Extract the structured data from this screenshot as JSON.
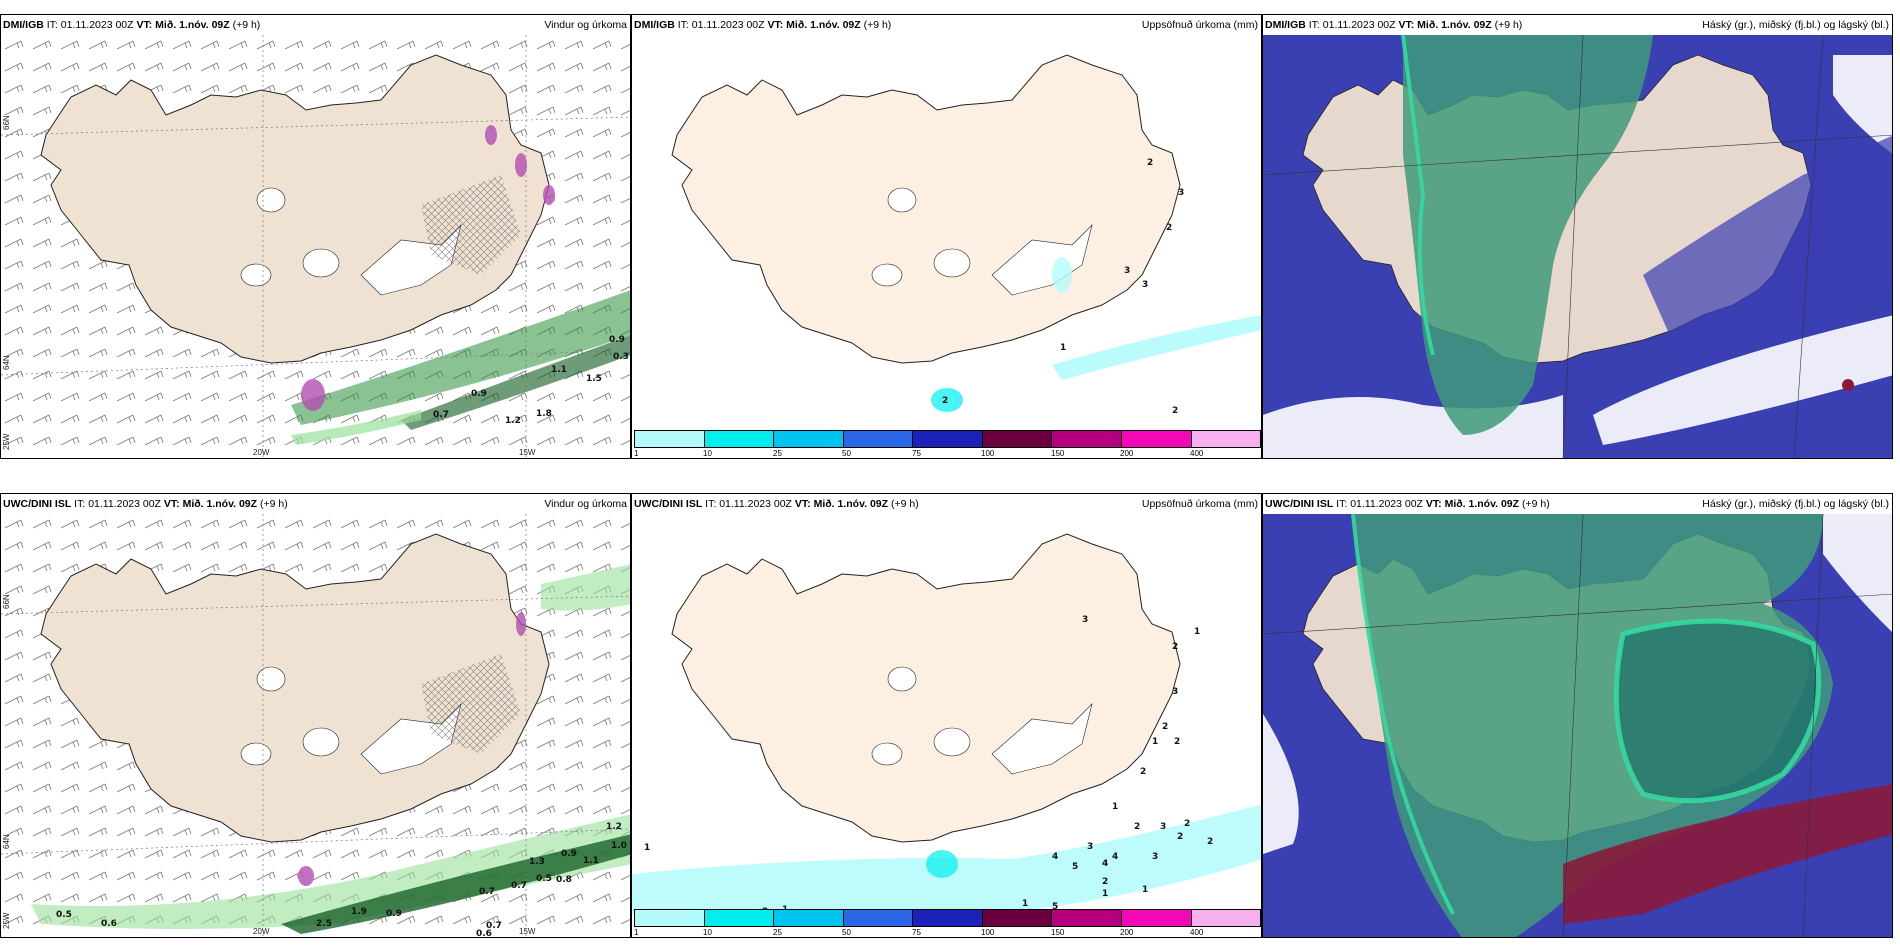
{
  "panels": [
    {
      "model": "DMI/IGB",
      "it_label": "IT:",
      "it": "01.11.2023 00Z",
      "vt_label": "VT:",
      "vt": "Mið. 1.nóv. 09Z",
      "lead": "(+9 h)",
      "title": "Vindur og úrkoma"
    },
    {
      "model": "DMI/IGB",
      "it_label": "IT:",
      "it": "01.11.2023 00Z",
      "vt_label": "VT:",
      "vt": "Mið. 1.nóv. 09Z",
      "lead": "(+9 h)",
      "title": "Uppsöfnuð úrkoma (mm)"
    },
    {
      "model": "DMI/IGB",
      "it_label": "IT:",
      "it": "01.11.2023 00Z",
      "vt_label": "VT:",
      "vt": "Mið. 1.nóv. 09Z",
      "lead": "(+9 h)",
      "title": "Háský (gr.), miðský (fj.bl.) og lágský (bl.)"
    },
    {
      "model": "UWC/DINI ISL",
      "it_label": "IT:",
      "it": "01.11.2023 00Z",
      "vt_label": "VT:",
      "vt": "Mið. 1.nóv. 09Z",
      "lead": "(+9 h)",
      "title": "Vindur og úrkoma"
    },
    {
      "model": "UWC/DINI ISL",
      "it_label": "IT:",
      "it": "01.11.2023 00Z",
      "vt_label": "VT:",
      "vt": "Mið. 1.nóv. 09Z",
      "lead": "(+9 h)",
      "title": "Uppsöfnuð úrkoma (mm)"
    },
    {
      "model": "UWC/DINI ISL",
      "it_label": "IT:",
      "it": "01.11.2023 00Z",
      "vt_label": "VT:",
      "vt": "Mið. 1.nóv. 09Z",
      "lead": "(+9 h)",
      "title": "Háský (gr.), miðský (fj.bl.) og lágský (bl.)"
    }
  ],
  "axes": {
    "lon_ticks": [
      "20W",
      "15W"
    ],
    "lat_ticks": [
      "66N",
      "64N"
    ],
    "lat_low": "25W"
  },
  "precip_colorbar": {
    "labels": [
      "1",
      "10",
      "25",
      "50",
      "75",
      "100",
      "150",
      "200",
      "400"
    ],
    "colors": [
      "#b3fbfb",
      "#00eeee",
      "#00c4f0",
      "#2a66e6",
      "#1a22b8",
      "#6a003f",
      "#b4007e",
      "#f208b8",
      "#f6b0f0"
    ]
  },
  "wind_labels": {
    "top": [
      "0.9",
      "1.1",
      "1.5",
      "0.7",
      "1.2",
      "1.8",
      "0.3",
      "0.9"
    ],
    "bottom": [
      "0.5",
      "0.6",
      "2.5",
      "1.9",
      "0.9",
      "0.7",
      "0.7",
      "0.6",
      "0.7",
      "0.5",
      "0.8",
      "1.1",
      "0.9",
      "1.0",
      "1.2",
      "1.3"
    ]
  },
  "accum_labels": {
    "top": [
      "2",
      "3",
      "2",
      "3",
      "3",
      "2",
      "1",
      "2"
    ],
    "bottom": [
      "1",
      "3",
      "2",
      "1",
      "3",
      "2",
      "1",
      "2",
      "2",
      "1",
      "2",
      "3",
      "4",
      "5",
      "4",
      "4",
      "3",
      "2",
      "2",
      "3",
      "2",
      "1",
      "5",
      "1",
      "2",
      "2",
      "1",
      "1"
    ]
  },
  "colors": {
    "land": "#f0e2d2",
    "land_accum": "#fdf0e2",
    "glacier": "#ffffff",
    "precip_green": "#2a8f3a",
    "cloud_high": "#3f9a7a",
    "cloud_mid": "#3a3fb2",
    "cloud_low": "#8a1a3a"
  }
}
